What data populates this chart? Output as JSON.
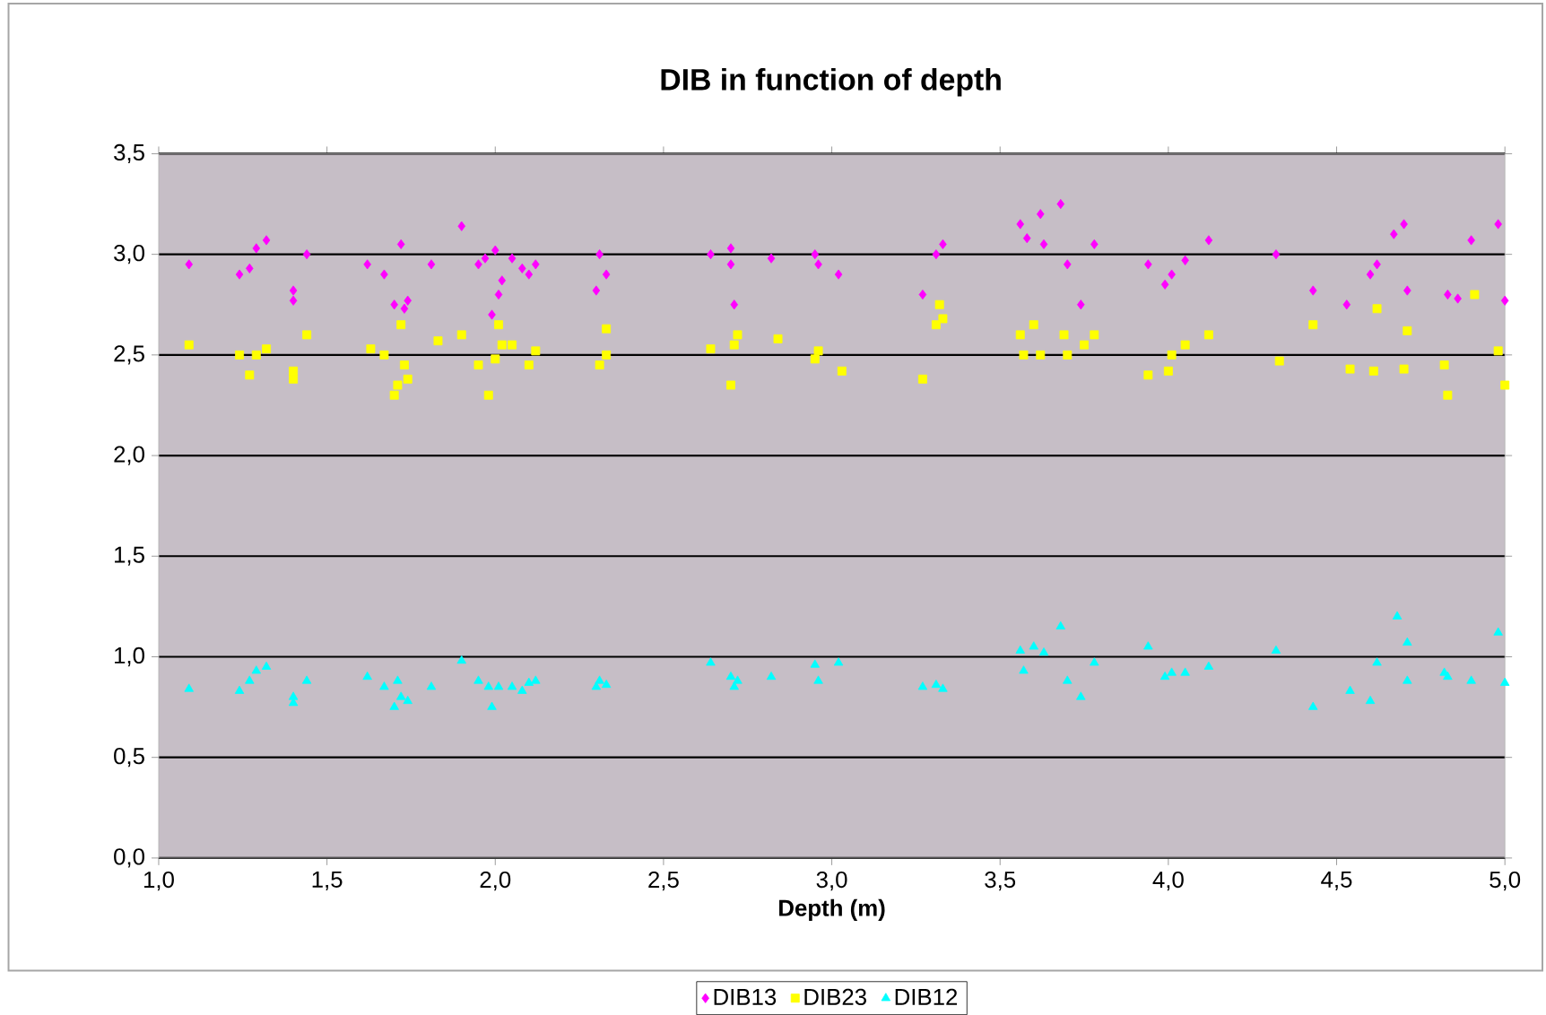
{
  "chart_data": {
    "type": "scatter",
    "title": "DIB in function of depth",
    "xlabel": "Depth (m)",
    "xlim": [
      1.0,
      5.0
    ],
    "ylim": [
      0.0,
      3.5
    ],
    "xticks": [
      {
        "value": 1.0,
        "label": "1,0"
      },
      {
        "value": 1.5,
        "label": "1,5"
      },
      {
        "value": 2.0,
        "label": "2,0"
      },
      {
        "value": 2.5,
        "label": "2,5"
      },
      {
        "value": 3.0,
        "label": "3,0"
      },
      {
        "value": 3.5,
        "label": "3,5"
      },
      {
        "value": 4.0,
        "label": "4,0"
      },
      {
        "value": 4.5,
        "label": "4,5"
      },
      {
        "value": 5.0,
        "label": "5,0"
      }
    ],
    "yticks": [
      {
        "value": 0.0,
        "label": "0,0"
      },
      {
        "value": 0.5,
        "label": "0,5"
      },
      {
        "value": 1.0,
        "label": "1,0"
      },
      {
        "value": 1.5,
        "label": "1,5"
      },
      {
        "value": 2.0,
        "label": "2,0"
      },
      {
        "value": 2.5,
        "label": "2,5"
      },
      {
        "value": 3.0,
        "label": "3,0"
      },
      {
        "value": 3.5,
        "label": "3,5"
      }
    ],
    "grid": "y",
    "legend": "bottom",
    "series": [
      {
        "name": "DIB13",
        "color": "#ff00ff",
        "marker": "diamond",
        "x": [
          1.09,
          1.24,
          1.27,
          1.29,
          1.32,
          1.4,
          1.4,
          1.44,
          1.62,
          1.67,
          1.7,
          1.72,
          1.73,
          1.74,
          1.81,
          1.9,
          1.95,
          1.97,
          1.99,
          2.0,
          2.01,
          2.02,
          2.05,
          2.08,
          2.1,
          2.12,
          2.3,
          2.31,
          2.33,
          2.64,
          2.7,
          2.7,
          2.71,
          2.82,
          2.95,
          2.96,
          3.02,
          3.27,
          3.31,
          3.33,
          3.56,
          3.58,
          3.62,
          3.63,
          3.68,
          3.7,
          3.74,
          3.78,
          3.94,
          3.99,
          4.01,
          4.05,
          4.12,
          4.32,
          4.43,
          4.53,
          4.6,
          4.62,
          4.67,
          4.7,
          4.71,
          4.83,
          4.86,
          4.9,
          4.98,
          5.0
        ],
        "values": [
          2.95,
          2.9,
          2.93,
          3.03,
          3.07,
          2.82,
          2.77,
          3.0,
          2.95,
          2.9,
          2.75,
          3.05,
          2.73,
          2.77,
          2.95,
          3.14,
          2.95,
          2.98,
          2.7,
          3.02,
          2.8,
          2.87,
          2.98,
          2.93,
          2.9,
          2.95,
          2.82,
          3.0,
          2.9,
          3.0,
          3.03,
          2.95,
          2.75,
          2.98,
          3.0,
          2.95,
          2.9,
          2.8,
          3.0,
          3.05,
          3.15,
          3.08,
          3.2,
          3.05,
          3.25,
          2.95,
          2.75,
          3.05,
          2.95,
          2.85,
          2.9,
          2.97,
          3.07,
          3.0,
          2.82,
          2.75,
          2.9,
          2.95,
          3.1,
          3.15,
          2.82,
          2.8,
          2.78,
          3.07,
          3.15,
          2.77
        ]
      },
      {
        "name": "DIB23",
        "color": "#ffff00",
        "marker": "square",
        "x": [
          1.09,
          1.24,
          1.27,
          1.29,
          1.32,
          1.4,
          1.4,
          1.44,
          1.63,
          1.67,
          1.7,
          1.71,
          1.73,
          1.72,
          1.74,
          1.83,
          1.9,
          1.95,
          1.98,
          2.0,
          2.01,
          2.02,
          2.05,
          2.1,
          2.12,
          2.31,
          2.33,
          2.33,
          2.64,
          2.7,
          2.71,
          2.72,
          2.84,
          2.96,
          2.95,
          3.03,
          3.27,
          3.31,
          3.32,
          3.33,
          3.56,
          3.57,
          3.6,
          3.62,
          3.69,
          3.7,
          3.75,
          3.78,
          3.94,
          4.0,
          4.01,
          4.05,
          4.12,
          4.33,
          4.43,
          4.54,
          4.61,
          4.62,
          4.7,
          4.71,
          4.82,
          4.83,
          4.91,
          4.98,
          5.0
        ],
        "values": [
          2.55,
          2.5,
          2.4,
          2.5,
          2.53,
          2.42,
          2.38,
          2.6,
          2.53,
          2.5,
          2.3,
          2.35,
          2.45,
          2.65,
          2.38,
          2.57,
          2.6,
          2.45,
          2.3,
          2.48,
          2.65,
          2.55,
          2.55,
          2.45,
          2.52,
          2.45,
          2.63,
          2.5,
          2.53,
          2.35,
          2.55,
          2.6,
          2.58,
          2.52,
          2.48,
          2.42,
          2.38,
          2.65,
          2.75,
          2.68,
          2.6,
          2.5,
          2.65,
          2.5,
          2.6,
          2.5,
          2.55,
          2.6,
          2.4,
          2.42,
          2.5,
          2.55,
          2.6,
          2.47,
          2.65,
          2.43,
          2.42,
          2.73,
          2.43,
          2.62,
          2.45,
          2.3,
          2.8,
          2.52,
          2.35
        ]
      },
      {
        "name": "DIB12",
        "color": "#00ffff",
        "marker": "triangle",
        "x": [
          1.09,
          1.24,
          1.27,
          1.29,
          1.32,
          1.4,
          1.4,
          1.44,
          1.62,
          1.67,
          1.7,
          1.71,
          1.72,
          1.74,
          1.81,
          1.9,
          1.95,
          1.98,
          1.99,
          2.01,
          2.05,
          2.08,
          2.1,
          2.12,
          2.3,
          2.31,
          2.33,
          2.64,
          2.7,
          2.71,
          2.72,
          2.82,
          2.95,
          2.96,
          3.02,
          3.27,
          3.31,
          3.33,
          3.56,
          3.57,
          3.6,
          3.63,
          3.68,
          3.7,
          3.74,
          3.78,
          3.94,
          3.99,
          4.01,
          4.05,
          4.12,
          4.32,
          4.43,
          4.54,
          4.6,
          4.62,
          4.68,
          4.71,
          4.71,
          4.82,
          4.83,
          4.9,
          4.98,
          5.0
        ],
        "values": [
          0.84,
          0.83,
          0.88,
          0.93,
          0.95,
          0.8,
          0.77,
          0.88,
          0.9,
          0.85,
          0.75,
          0.88,
          0.8,
          0.78,
          0.85,
          0.98,
          0.88,
          0.85,
          0.75,
          0.85,
          0.85,
          0.83,
          0.87,
          0.88,
          0.85,
          0.88,
          0.86,
          0.97,
          0.9,
          0.85,
          0.88,
          0.9,
          0.96,
          0.88,
          0.97,
          0.85,
          0.86,
          0.84,
          1.03,
          0.93,
          1.05,
          1.02,
          1.15,
          0.88,
          0.8,
          0.97,
          1.05,
          0.9,
          0.92,
          0.92,
          0.95,
          1.03,
          0.75,
          0.83,
          0.78,
          0.97,
          1.2,
          1.07,
          0.88,
          0.92,
          0.9,
          0.88,
          1.12,
          0.87
        ]
      }
    ]
  }
}
